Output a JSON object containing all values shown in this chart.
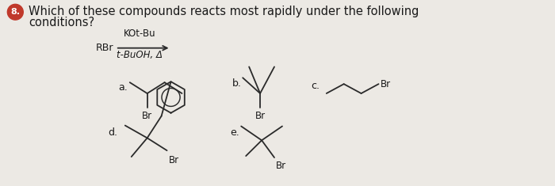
{
  "background_color": "#ece9e4",
  "question_line1": "Which of these compounds reacts most rapidly under the following",
  "question_line2": "conditions?",
  "reaction_reagent": "RBr",
  "reaction_above": "KOt-Bu",
  "reaction_below": "t-BuOH, Δ",
  "structure_color": "#2a2a2a",
  "text_color": "#1a1a1a",
  "badge_color": "#c0392b",
  "font_size_q": 10.5,
  "font_size_label": 9,
  "font_size_br": 8.5,
  "font_size_rxn": 8.5
}
